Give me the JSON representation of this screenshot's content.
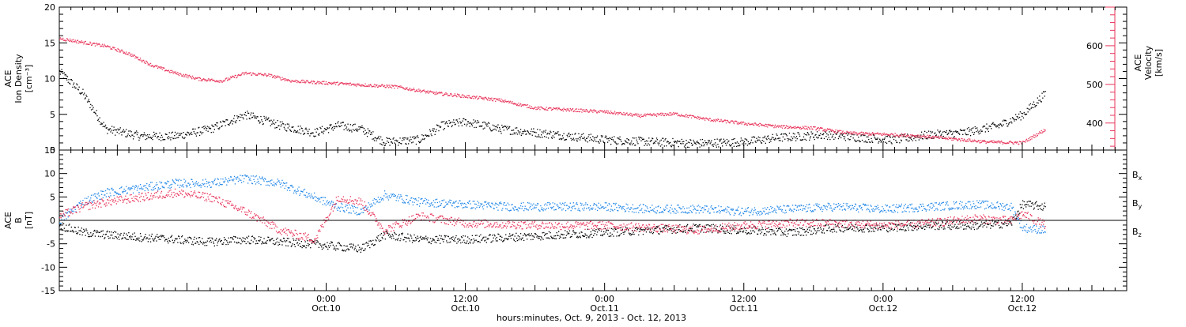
{
  "chart_data": {
    "type": "scatter",
    "time_axis": {
      "start": "2013-10-09T01:00",
      "end": "2013-10-12T21:00",
      "major_ticks": [
        "2013-10-10T00:00",
        "2013-10-10T12:00",
        "2013-10-11T00:00",
        "2013-10-11T12:00",
        "2013-10-12T00:00",
        "2013-10-12T12:00"
      ],
      "tick_labels_line1": [
        "0:00",
        "12:00",
        "0:00",
        "12:00",
        "0:00",
        "12:00"
      ],
      "tick_labels_line2": [
        "Oct.10",
        "Oct.10",
        "Oct.11",
        "Oct.11",
        "Oct.12",
        "Oct.12"
      ],
      "xlabel": "hours:minutes, Oct. 9, 2013 - Oct. 12, 2013"
    },
    "panels": [
      {
        "id": "density",
        "ylabel_left": [
          "ACE",
          "Ion Density",
          "[cm⁻³]"
        ],
        "ylim_left": [
          0,
          20
        ],
        "yticks_left": [
          0,
          5,
          10,
          15,
          20
        ],
        "ylabel_right": [
          "ACE",
          "Velocity",
          "[km/s]"
        ],
        "ylim_right": [
          330,
          700
        ],
        "yticks_right": [
          400,
          500,
          600
        ],
        "series": [
          {
            "color": "#000000",
            "axis": "left",
            "points": [
              [
                "2013-10-09T01:00",
                11
              ],
              [
                "2013-10-09T03:00",
                8
              ],
              [
                "2013-10-09T05:00",
                3
              ],
              [
                "2013-10-09T08:00",
                2
              ],
              [
                "2013-10-09T11:00",
                2
              ],
              [
                "2013-10-09T14:00",
                3
              ],
              [
                "2013-10-09T17:00",
                5
              ],
              [
                "2013-10-09T20:00",
                3.5
              ],
              [
                "2013-10-09T23:00",
                2.5
              ],
              [
                "2013-10-10T01:00",
                3.5
              ],
              [
                "2013-10-10T03:00",
                3
              ],
              [
                "2013-10-10T05:00",
                1.2
              ],
              [
                "2013-10-10T08:00",
                1.5
              ],
              [
                "2013-10-10T10:00",
                3.5
              ],
              [
                "2013-10-10T12:00",
                4
              ],
              [
                "2013-10-10T15:00",
                3
              ],
              [
                "2013-10-10T18:00",
                2.5
              ],
              [
                "2013-10-10T21:00",
                2
              ],
              [
                "2013-10-11T00:00",
                1.5
              ],
              [
                "2013-10-11T04:00",
                1.2
              ],
              [
                "2013-10-11T08:00",
                1
              ],
              [
                "2013-10-11T12:00",
                1.2
              ],
              [
                "2013-10-11T15:00",
                1.8
              ],
              [
                "2013-10-11T19:00",
                2.2
              ],
              [
                "2013-10-11T22:00",
                1.8
              ],
              [
                "2013-10-12T01:00",
                1.5
              ],
              [
                "2013-10-12T04:00",
                2.2
              ],
              [
                "2013-10-12T07:00",
                2.5
              ],
              [
                "2013-10-12T10:00",
                3.5
              ],
              [
                "2013-10-12T12:00",
                5
              ],
              [
                "2013-10-12T14:00",
                8
              ]
            ]
          },
          {
            "color": "#e8345a",
            "axis": "right",
            "points": [
              [
                "2013-10-09T01:00",
                620
              ],
              [
                "2013-10-09T03:00",
                610
              ],
              [
                "2013-10-09T05:00",
                600
              ],
              [
                "2013-10-09T07:00",
                580
              ],
              [
                "2013-10-09T09:00",
                550
              ],
              [
                "2013-10-09T11:00",
                530
              ],
              [
                "2013-10-09T13:00",
                515
              ],
              [
                "2013-10-09T15:00",
                510
              ],
              [
                "2013-10-09T17:00",
                530
              ],
              [
                "2013-10-09T19:00",
                525
              ],
              [
                "2013-10-09T21:00",
                510
              ],
              [
                "2013-10-10T00:00",
                505
              ],
              [
                "2013-10-10T03:00",
                500
              ],
              [
                "2013-10-10T06:00",
                495
              ],
              [
                "2013-10-10T09:00",
                480
              ],
              [
                "2013-10-10T12:00",
                470
              ],
              [
                "2013-10-10T15:00",
                460
              ],
              [
                "2013-10-10T18:00",
                440
              ],
              [
                "2013-10-10T21:00",
                435
              ],
              [
                "2013-10-11T00:00",
                430
              ],
              [
                "2013-10-11T03:00",
                420
              ],
              [
                "2013-10-11T06:00",
                425
              ],
              [
                "2013-10-11T09:00",
                410
              ],
              [
                "2013-10-11T12:00",
                400
              ],
              [
                "2013-10-11T15:00",
                392
              ],
              [
                "2013-10-11T18:00",
                388
              ],
              [
                "2013-10-11T21:00",
                375
              ],
              [
                "2013-10-12T00:00",
                372
              ],
              [
                "2013-10-12T03:00",
                368
              ],
              [
                "2013-10-12T06:00",
                360
              ],
              [
                "2013-10-12T09:00",
                352
              ],
              [
                "2013-10-12T12:00",
                350
              ],
              [
                "2013-10-12T14:00",
                385
              ]
            ]
          }
        ]
      },
      {
        "id": "mag",
        "ylabel_left": [
          "ACE",
          "B",
          "[nT]"
        ],
        "ylim_left": [
          -15,
          15
        ],
        "yticks_left": [
          -15,
          -10,
          -5,
          0,
          5,
          10,
          15
        ],
        "zero_line": true,
        "legend": [
          {
            "main": "B",
            "sub": "x",
            "color": "#000000"
          },
          {
            "main": "B",
            "sub": "y",
            "color": "#1f86e6"
          },
          {
            "main": "B",
            "sub": "z",
            "color": "#e8345a"
          }
        ],
        "series": [
          {
            "name": "Bx",
            "color": "#000000",
            "points": [
              [
                "2013-10-09T01:00",
                -1
              ],
              [
                "2013-10-09T03:00",
                -2.5
              ],
              [
                "2013-10-09T05:00",
                -3
              ],
              [
                "2013-10-09T08:00",
                -3.5
              ],
              [
                "2013-10-09T11:00",
                -4
              ],
              [
                "2013-10-09T14:00",
                -4.5
              ],
              [
                "2013-10-09T17:00",
                -4
              ],
              [
                "2013-10-09T20:00",
                -4.5
              ],
              [
                "2013-10-09T23:00",
                -5
              ],
              [
                "2013-10-10T01:00",
                -5.5
              ],
              [
                "2013-10-10T03:00",
                -6
              ],
              [
                "2013-10-10T05:00",
                -3
              ],
              [
                "2013-10-10T08:00",
                -4
              ],
              [
                "2013-10-10T12:00",
                -4
              ],
              [
                "2013-10-10T16:00",
                -3.5
              ],
              [
                "2013-10-10T20:00",
                -3
              ],
              [
                "2013-10-11T00:00",
                -2.5
              ],
              [
                "2013-10-11T04:00",
                -2
              ],
              [
                "2013-10-11T08:00",
                -1.5
              ],
              [
                "2013-10-11T12:00",
                -2
              ],
              [
                "2013-10-11T16:00",
                -2.5
              ],
              [
                "2013-10-11T20:00",
                -1.5
              ],
              [
                "2013-10-12T00:00",
                -1.5
              ],
              [
                "2013-10-12T04:00",
                -1
              ],
              [
                "2013-10-12T08:00",
                -1
              ],
              [
                "2013-10-12T11:00",
                -0.5
              ],
              [
                "2013-10-12T12:00",
                3.5
              ],
              [
                "2013-10-12T14:00",
                3
              ]
            ]
          },
          {
            "name": "By",
            "color": "#1f86e6",
            "points": [
              [
                "2013-10-09T01:00",
                0
              ],
              [
                "2013-10-09T03:00",
                4
              ],
              [
                "2013-10-09T05:00",
                6
              ],
              [
                "2013-10-09T08:00",
                7
              ],
              [
                "2013-10-09T11:00",
                8
              ],
              [
                "2013-10-09T14:00",
                8
              ],
              [
                "2013-10-09T17:00",
                9
              ],
              [
                "2013-10-09T20:00",
                8
              ],
              [
                "2013-10-09T23:00",
                5
              ],
              [
                "2013-10-10T01:00",
                3
              ],
              [
                "2013-10-10T03:00",
                2
              ],
              [
                "2013-10-10T05:00",
                5.5
              ],
              [
                "2013-10-10T08:00",
                4
              ],
              [
                "2013-10-10T12:00",
                3.5
              ],
              [
                "2013-10-10T16:00",
                3
              ],
              [
                "2013-10-10T20:00",
                3
              ],
              [
                "2013-10-11T00:00",
                3
              ],
              [
                "2013-10-11T04:00",
                2.5
              ],
              [
                "2013-10-11T08:00",
                2.5
              ],
              [
                "2013-10-11T12:00",
                2
              ],
              [
                "2013-10-11T16:00",
                2.5
              ],
              [
                "2013-10-11T20:00",
                3
              ],
              [
                "2013-10-12T00:00",
                2.5
              ],
              [
                "2013-10-12T04:00",
                3
              ],
              [
                "2013-10-12T08:00",
                3.5
              ],
              [
                "2013-10-12T11:00",
                3
              ],
              [
                "2013-10-12T12:00",
                -1.5
              ],
              [
                "2013-10-12T14:00",
                -2
              ]
            ]
          },
          {
            "name": "Bz",
            "color": "#e8345a",
            "points": [
              [
                "2013-10-09T01:00",
                1
              ],
              [
                "2013-10-09T03:00",
                3
              ],
              [
                "2013-10-09T05:00",
                4
              ],
              [
                "2013-10-09T08:00",
                5
              ],
              [
                "2013-10-09T11:00",
                6
              ],
              [
                "2013-10-09T14:00",
                5
              ],
              [
                "2013-10-09T17:00",
                2
              ],
              [
                "2013-10-09T20:00",
                -2
              ],
              [
                "2013-10-09T23:00",
                -4
              ],
              [
                "2013-10-10T01:00",
                5
              ],
              [
                "2013-10-10T03:00",
                4
              ],
              [
                "2013-10-10T05:00",
                -2
              ],
              [
                "2013-10-10T08:00",
                1
              ],
              [
                "2013-10-10T12:00",
                -0.5
              ],
              [
                "2013-10-10T16:00",
                -0.8
              ],
              [
                "2013-10-10T20:00",
                -1
              ],
              [
                "2013-10-11T00:00",
                -1
              ],
              [
                "2013-10-11T04:00",
                -1.5
              ],
              [
                "2013-10-11T08:00",
                -2
              ],
              [
                "2013-10-11T12:00",
                -1
              ],
              [
                "2013-10-11T16:00",
                -0.5
              ],
              [
                "2013-10-11T20:00",
                -0.5
              ],
              [
                "2013-10-12T00:00",
                -1
              ],
              [
                "2013-10-12T04:00",
                -0.5
              ],
              [
                "2013-10-12T08:00",
                0.5
              ],
              [
                "2013-10-12T11:00",
                0
              ],
              [
                "2013-10-12T12:00",
                1.5
              ],
              [
                "2013-10-12T14:00",
                -1
              ]
            ]
          }
        ]
      }
    ]
  }
}
